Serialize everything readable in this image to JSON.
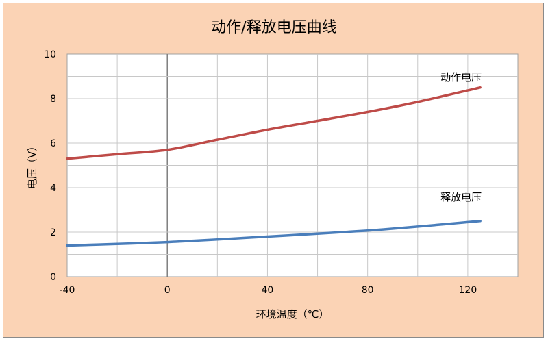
{
  "chart_data": {
    "type": "line",
    "title": "动作/释放电压曲线",
    "xlabel": "环境温度（℃）",
    "ylabel": "电压（V）",
    "xlim": [
      -40,
      140
    ],
    "ylim": [
      0,
      10
    ],
    "x_ticks": [
      -40,
      0,
      40,
      80,
      120
    ],
    "x_tick_labels": [
      "-40",
      "0",
      "40",
      "80",
      "120"
    ],
    "x_grid_step": 20,
    "y_ticks": [
      0,
      2,
      4,
      6,
      8,
      10
    ],
    "y_tick_labels": [
      "0",
      "2",
      "4",
      "6",
      "8",
      "10"
    ],
    "y_grid_step": 1,
    "grid": true,
    "background_color": "#fbd3b5",
    "plot_background_color": "#ffffff",
    "series": [
      {
        "name": "动作电压",
        "color": "#be4b48",
        "x": [
          -40,
          -20,
          0,
          20,
          40,
          60,
          80,
          100,
          125
        ],
        "y": [
          5.3,
          5.5,
          5.7,
          6.15,
          6.6,
          7.0,
          7.4,
          7.85,
          8.5
        ]
      },
      {
        "name": "释放电压",
        "color": "#4a7ebb",
        "x": [
          -40,
          -20,
          0,
          20,
          40,
          60,
          80,
          100,
          125
        ],
        "y": [
          1.4,
          1.47,
          1.55,
          1.67,
          1.8,
          1.93,
          2.07,
          2.25,
          2.5
        ]
      }
    ]
  }
}
